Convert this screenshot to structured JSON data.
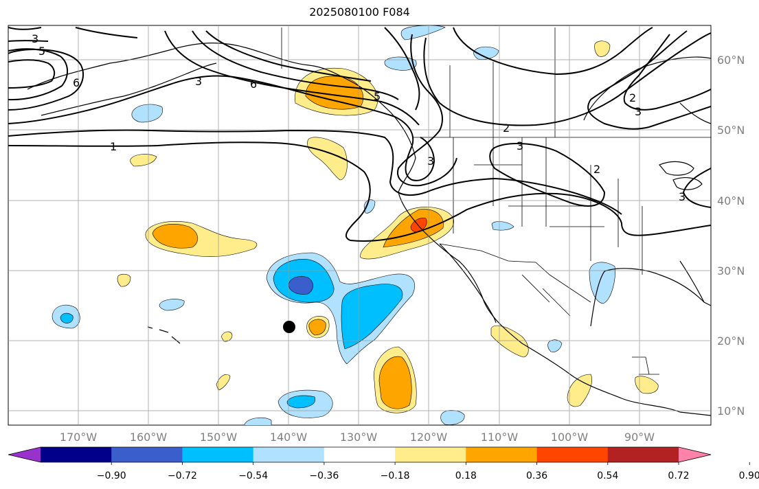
{
  "title": "2025080100 F084",
  "lon_labels": [
    "170°W",
    "160°W",
    "150°W",
    "140°W",
    "130°W",
    "120°W",
    "110°W",
    "100°W",
    "90°W"
  ],
  "lat_labels": [
    "60°N",
    "50°N",
    "40°N",
    "30°N",
    "20°N",
    "10°N"
  ],
  "colorbar": {
    "tick_labels": [
      "−0.90",
      "−0.72",
      "−0.54",
      "−0.36",
      "−0.18",
      "0.18",
      "0.36",
      "0.54",
      "0.72",
      "0.90"
    ],
    "colors": [
      "#9932cc",
      "#00008b",
      "#3a5fcd",
      "#00bfff",
      "#b0e2ff",
      "#ffffff",
      "#ffec8b",
      "#ffa500",
      "#ff4500",
      "#b22222",
      "#ff82ab"
    ]
  },
  "contour_labels": [
    "3",
    "5",
    "6",
    "3",
    "6",
    "5",
    "1",
    "2",
    "3",
    "3",
    "2",
    "3",
    "2",
    "3"
  ],
  "marker": "storm-center"
}
